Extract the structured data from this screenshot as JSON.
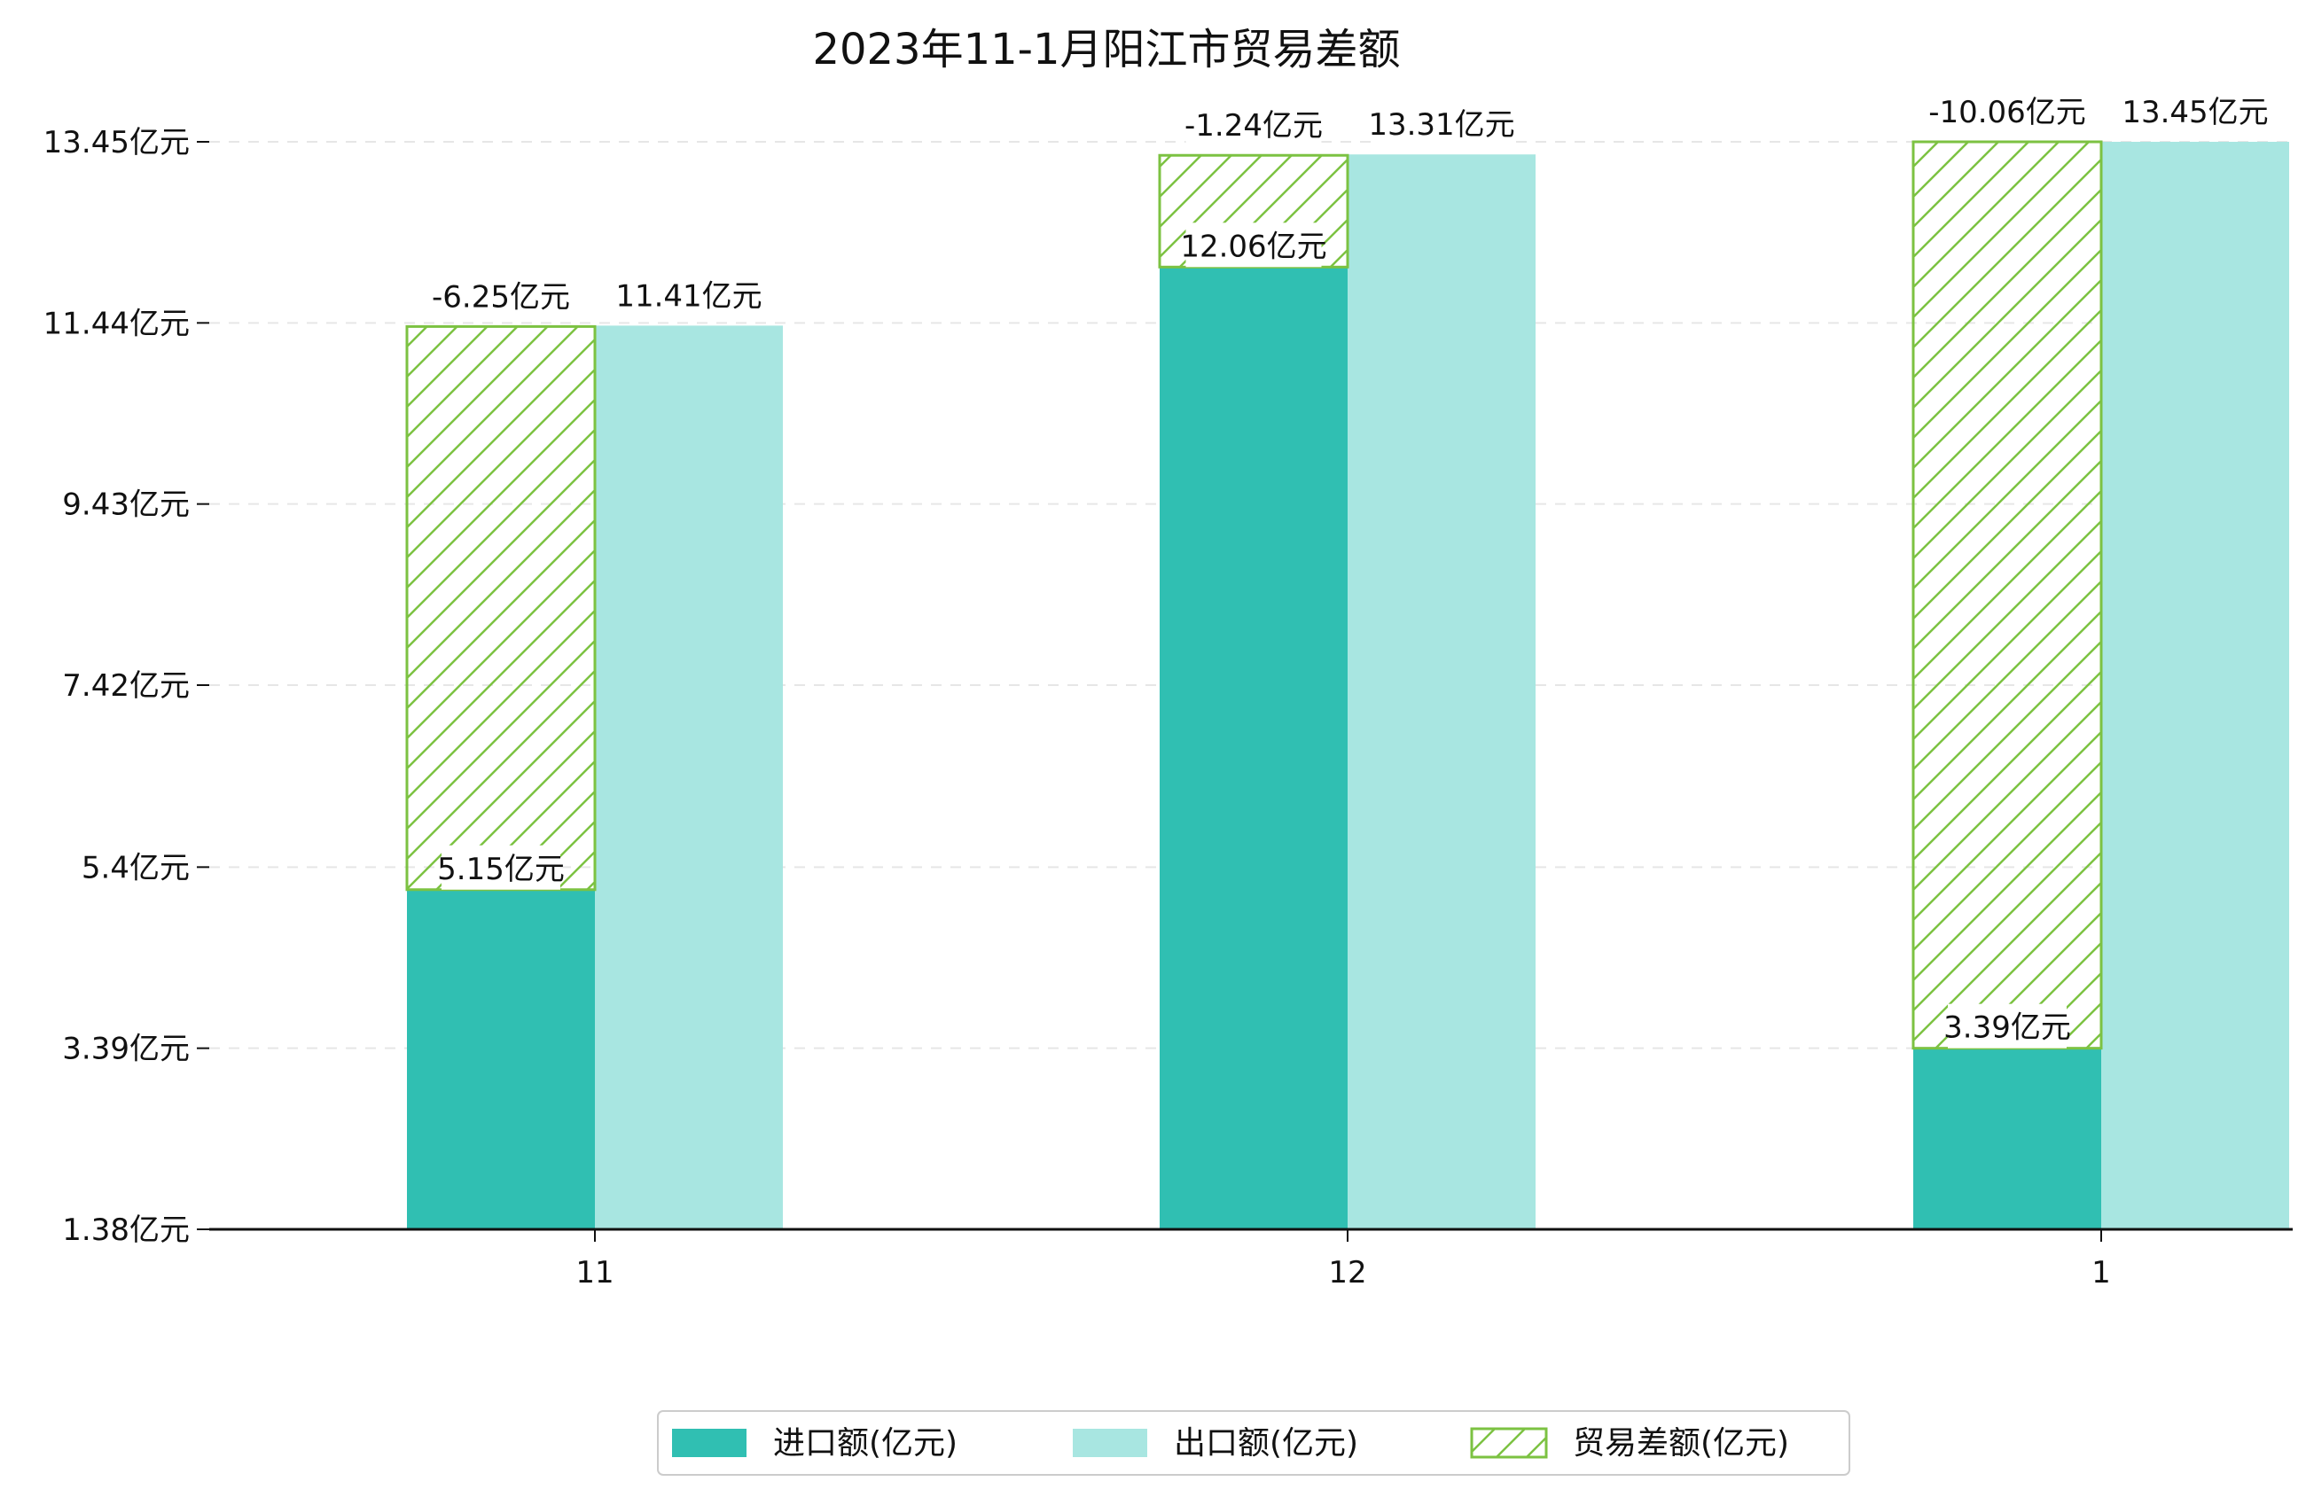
{
  "chart_data": {
    "type": "bar",
    "title": "2023年11-1月阳江市贸易差额",
    "categories": [
      "11",
      "12",
      "1"
    ],
    "ylim": [
      1.38,
      13.45
    ],
    "yticks": [
      "1.38亿元",
      "3.39亿元",
      "5.4亿元",
      "7.42亿元",
      "9.43亿元",
      "11.44亿元",
      "13.45亿元"
    ],
    "ytick_values": [
      1.38,
      3.39,
      5.4,
      7.42,
      9.43,
      11.44,
      13.45
    ],
    "grid": true,
    "legend_position": "bottom-center",
    "colors": {
      "import": "#30bfb2",
      "export": "#a8e6e1",
      "balance": "#7cc242"
    },
    "series": [
      {
        "name": "进口额(亿元)",
        "values": [
          5.15,
          12.06,
          3.39
        ],
        "labels": [
          "5.15亿元",
          "12.06亿元",
          "3.39亿元"
        ]
      },
      {
        "name": "出口额(亿元)",
        "values": [
          11.41,
          13.31,
          13.45
        ],
        "labels": [
          "11.41亿元",
          "13.31亿元",
          "13.45亿元"
        ]
      },
      {
        "name": "贸易差额(亿元)",
        "values": [
          -6.25,
          -1.24,
          -10.06
        ],
        "labels": [
          "-6.25亿元",
          "-1.24亿元",
          "-10.06亿元"
        ]
      }
    ]
  }
}
